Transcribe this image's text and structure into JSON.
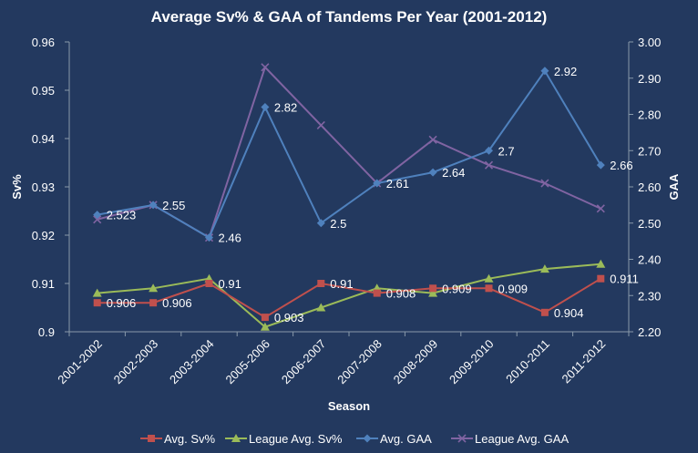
{
  "chart_data": {
    "type": "line",
    "title": "Average Sv% & GAA of Tandems Per  Year (2001-2012)",
    "xlabel": "Season",
    "ylabel": "Sv%",
    "y2label": "GAA",
    "categories": [
      "2001-2002",
      "2002-2003",
      "2003-2004",
      "2005-2006",
      "2006-2007",
      "2007-2008",
      "2008-2009",
      "2009-2010",
      "2010-2011",
      "2011-2012"
    ],
    "ylim": [
      0.9,
      0.96
    ],
    "y2lim": [
      2.2,
      3.0
    ],
    "yticks": [
      "0.9",
      "0.91",
      "0.92",
      "0.93",
      "0.94",
      "0.95",
      "0.96"
    ],
    "y2ticks": [
      "2.20",
      "2.30",
      "2.40",
      "2.50",
      "2.60",
      "2.70",
      "2.80",
      "2.90",
      "3.00"
    ],
    "grid": false,
    "legend_position": "bottom",
    "series": [
      {
        "name": "Avg. Sv%",
        "axis": "left",
        "marker": "square",
        "color": "#c0504d",
        "values": [
          0.906,
          0.906,
          0.91,
          0.903,
          0.91,
          0.908,
          0.909,
          0.909,
          0.904,
          0.911
        ],
        "labels": [
          "0.906",
          "0.906",
          "0.91",
          "0.903",
          "0.91",
          "0.908",
          "0.909",
          "0.909",
          "0.904",
          "0.911"
        ]
      },
      {
        "name": "League Avg. Sv%",
        "axis": "left",
        "marker": "triangle",
        "color": "#9bbb59",
        "values": [
          0.908,
          0.909,
          0.911,
          0.901,
          0.905,
          0.909,
          0.908,
          0.911,
          0.913,
          0.914
        ]
      },
      {
        "name": "Avg. GAA",
        "axis": "right",
        "marker": "diamond",
        "color": "#4f81bd",
        "values": [
          2.523,
          2.55,
          2.46,
          2.82,
          2.5,
          2.61,
          2.64,
          2.7,
          2.92,
          2.66
        ],
        "labels": [
          "2.523",
          "2.55",
          "2.46",
          "2.82",
          "2.5",
          "2.61",
          "2.64",
          "2.7",
          "2.92",
          "2.66"
        ]
      },
      {
        "name": "League Avg. GAA",
        "axis": "right",
        "marker": "x",
        "color": "#8064a2",
        "values": [
          2.51,
          2.55,
          2.46,
          2.93,
          2.77,
          2.61,
          2.73,
          2.66,
          2.61,
          2.54
        ]
      }
    ]
  }
}
